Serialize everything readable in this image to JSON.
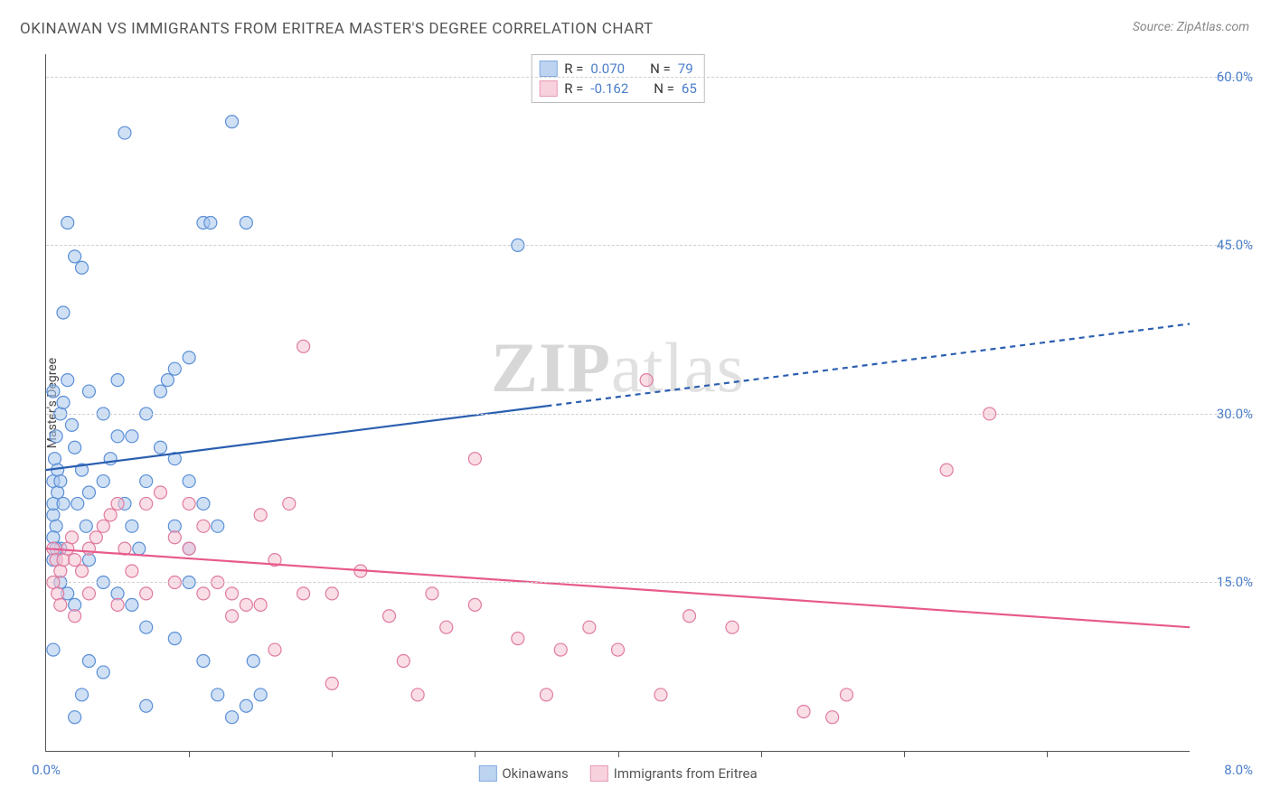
{
  "title": "OKINAWAN VS IMMIGRANTS FROM ERITREA MASTER'S DEGREE CORRELATION CHART",
  "source_label": "Source: ",
  "source_name": "ZipAtlas.com",
  "y_axis_label": "Master's Degree",
  "watermark_a": "ZIP",
  "watermark_b": "atlas",
  "chart": {
    "type": "scatter",
    "xlim": [
      0,
      8
    ],
    "ylim": [
      0,
      62
    ],
    "x_ticks_minor": [
      1,
      2,
      3,
      4,
      5,
      6,
      7
    ],
    "x_tick_labels": [
      {
        "x": 0,
        "label": "0.0%"
      },
      {
        "x": 8,
        "label": "8.0%",
        "right": true
      }
    ],
    "y_gridlines": [
      15,
      30,
      45,
      60
    ],
    "y_tick_labels": [
      {
        "y": 15,
        "label": "15.0%"
      },
      {
        "y": 30,
        "label": "30.0%"
      },
      {
        "y": 45,
        "label": "45.0%"
      },
      {
        "y": 60,
        "label": "60.0%"
      }
    ],
    "background_color": "#ffffff",
    "grid_color": "#d0d0d0",
    "axis_color": "#555555",
    "marker_radius": 7,
    "marker_stroke_width": 1.2,
    "series": [
      {
        "id": "okinawans",
        "label": "Okinawans",
        "fill": "#a7c6ed",
        "stroke": "#5b8fd6",
        "fill_opacity": 0.55,
        "R": "0.070",
        "N": "79",
        "trend": {
          "x1": 0,
          "y1": 25,
          "x2": 8,
          "y2": 38,
          "solid_until_x": 3.5,
          "color": "#2b5fb0",
          "width": 2.2
        },
        "points": [
          [
            0.05,
            24
          ],
          [
            0.05,
            21
          ],
          [
            0.07,
            20
          ],
          [
            0.08,
            23
          ],
          [
            0.06,
            26
          ],
          [
            0.07,
            28
          ],
          [
            0.1,
            30
          ],
          [
            0.05,
            32
          ],
          [
            0.15,
            33
          ],
          [
            0.12,
            31
          ],
          [
            0.18,
            29
          ],
          [
            0.2,
            27
          ],
          [
            0.25,
            25
          ],
          [
            0.3,
            23
          ],
          [
            0.22,
            22
          ],
          [
            0.28,
            20
          ],
          [
            0.4,
            24
          ],
          [
            0.45,
            26
          ],
          [
            0.5,
            28
          ],
          [
            0.55,
            22
          ],
          [
            0.6,
            20
          ],
          [
            0.65,
            18
          ],
          [
            0.7,
            24
          ],
          [
            0.8,
            27
          ],
          [
            0.85,
            33
          ],
          [
            0.9,
            34
          ],
          [
            1.0,
            35
          ],
          [
            1.1,
            47
          ],
          [
            1.15,
            47
          ],
          [
            1.4,
            47
          ],
          [
            1.3,
            56
          ],
          [
            0.55,
            55
          ],
          [
            0.15,
            47
          ],
          [
            0.2,
            44
          ],
          [
            0.25,
            43
          ],
          [
            0.12,
            39
          ],
          [
            0.3,
            32
          ],
          [
            0.4,
            30
          ],
          [
            0.5,
            33
          ],
          [
            0.6,
            28
          ],
          [
            0.7,
            30
          ],
          [
            0.8,
            32
          ],
          [
            0.9,
            26
          ],
          [
            1.0,
            24
          ],
          [
            1.1,
            22
          ],
          [
            1.2,
            20
          ],
          [
            0.05,
            17
          ],
          [
            0.1,
            15
          ],
          [
            0.15,
            14
          ],
          [
            0.2,
            13
          ],
          [
            0.1,
            18
          ],
          [
            0.3,
            17
          ],
          [
            0.4,
            15
          ],
          [
            0.5,
            14
          ],
          [
            0.6,
            13
          ],
          [
            0.7,
            11
          ],
          [
            0.05,
            9
          ],
          [
            0.25,
            5
          ],
          [
            0.4,
            7
          ],
          [
            0.7,
            4
          ],
          [
            0.9,
            10
          ],
          [
            1.0,
            15
          ],
          [
            1.1,
            8
          ],
          [
            1.2,
            5
          ],
          [
            1.3,
            3
          ],
          [
            1.4,
            4
          ],
          [
            1.5,
            5
          ],
          [
            1.45,
            8
          ],
          [
            1.0,
            18
          ],
          [
            0.9,
            20
          ],
          [
            0.3,
            8
          ],
          [
            0.2,
            3
          ],
          [
            3.3,
            45
          ],
          [
            0.05,
            22
          ],
          [
            0.08,
            25
          ],
          [
            0.1,
            24
          ],
          [
            0.12,
            22
          ],
          [
            0.05,
            19
          ],
          [
            0.07,
            18
          ]
        ]
      },
      {
        "id": "eritrea",
        "label": "Immigrants from Eritrea",
        "fill": "#f5c2d1",
        "stroke": "#e07ba0",
        "fill_opacity": 0.55,
        "R": "-0.162",
        "N": "65",
        "trend": {
          "x1": 0,
          "y1": 18,
          "x2": 8,
          "y2": 11,
          "solid_until_x": 8,
          "color": "#e75a8c",
          "width": 2.2
        },
        "points": [
          [
            0.05,
            18
          ],
          [
            0.07,
            17
          ],
          [
            0.1,
            16
          ],
          [
            0.12,
            17
          ],
          [
            0.15,
            18
          ],
          [
            0.18,
            19
          ],
          [
            0.2,
            17
          ],
          [
            0.25,
            16
          ],
          [
            0.3,
            18
          ],
          [
            0.35,
            19
          ],
          [
            0.4,
            20
          ],
          [
            0.45,
            21
          ],
          [
            0.5,
            22
          ],
          [
            0.55,
            18
          ],
          [
            0.6,
            16
          ],
          [
            0.7,
            22
          ],
          [
            0.8,
            23
          ],
          [
            0.9,
            19
          ],
          [
            1.0,
            18
          ],
          [
            1.1,
            20
          ],
          [
            1.2,
            15
          ],
          [
            1.3,
            14
          ],
          [
            1.4,
            13
          ],
          [
            1.5,
            21
          ],
          [
            1.6,
            17
          ],
          [
            1.7,
            22
          ],
          [
            1.8,
            36
          ],
          [
            0.05,
            15
          ],
          [
            0.08,
            14
          ],
          [
            0.1,
            13
          ],
          [
            0.2,
            12
          ],
          [
            0.3,
            14
          ],
          [
            0.5,
            13
          ],
          [
            0.7,
            14
          ],
          [
            0.9,
            15
          ],
          [
            1.1,
            14
          ],
          [
            1.3,
            12
          ],
          [
            1.5,
            13
          ],
          [
            1.8,
            14
          ],
          [
            2.0,
            14
          ],
          [
            2.2,
            16
          ],
          [
            2.4,
            12
          ],
          [
            2.5,
            8
          ],
          [
            2.6,
            5
          ],
          [
            2.8,
            11
          ],
          [
            3.0,
            13
          ],
          [
            3.0,
            26
          ],
          [
            3.3,
            10
          ],
          [
            3.5,
            5
          ],
          [
            3.6,
            9
          ],
          [
            3.8,
            11
          ],
          [
            4.0,
            9
          ],
          [
            4.2,
            33
          ],
          [
            4.5,
            12
          ],
          [
            4.8,
            11
          ],
          [
            5.3,
            3.5
          ],
          [
            5.5,
            3
          ],
          [
            5.6,
            5
          ],
          [
            6.3,
            25
          ],
          [
            6.6,
            30
          ],
          [
            4.3,
            5
          ],
          [
            2.7,
            14
          ],
          [
            2.0,
            6
          ],
          [
            1.6,
            9
          ],
          [
            1.0,
            22
          ]
        ]
      }
    ],
    "stats_legend": {
      "r_label": "R =",
      "n_label": "N ="
    },
    "bottom_legend": true
  }
}
